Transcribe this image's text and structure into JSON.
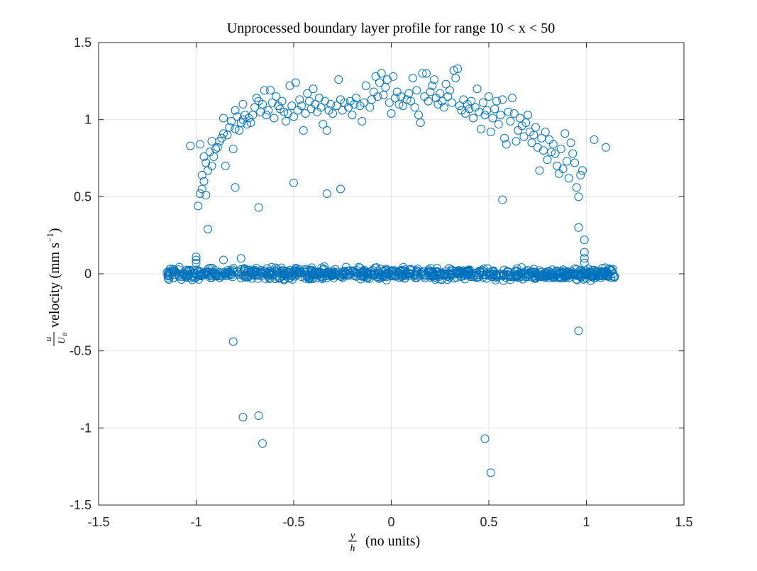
{
  "chart_data": {
    "type": "scatter",
    "title": "Unprocessed boundary layer profile for range 10 < x < 50",
    "xlabel": {
      "frac_num": "y",
      "frac_den": "h",
      "rest": "(no units)"
    },
    "ylabel": {
      "frac_num": "u",
      "frac_den": "U",
      "frac_den_sub": "B",
      "rest": "velocity (mm s",
      "unit_exp": "−1",
      "close": ")"
    },
    "xlim": [
      -1.5,
      1.5
    ],
    "ylim": [
      -1.5,
      1.5
    ],
    "xticks": [
      -1.5,
      -1,
      -0.5,
      0,
      0.5,
      1,
      1.5
    ],
    "xtick_labels": [
      "-1.5",
      "-1",
      "-0.5",
      "0",
      "0.5",
      "1",
      "1.5"
    ],
    "yticks": [
      -1.5,
      -1,
      -0.5,
      0,
      0.5,
      1,
      1.5
    ],
    "ytick_labels": [
      "-1.5",
      "-1",
      "-0.5",
      "0",
      "0.5",
      "1",
      "1.5"
    ],
    "grid": true,
    "marker": "open-circle",
    "marker_color": "#0072BD",
    "grid_color": "#e3e3e3",
    "near_zero_band": {
      "x_range": [
        -1.15,
        1.15
      ],
      "y_center": 0.0,
      "y_spread": 0.03,
      "count": 900
    },
    "points": [
      [
        -1.03,
        0.83
      ],
      [
        -0.98,
        0.84
      ],
      [
        -0.99,
        0.44
      ],
      [
        -0.98,
        0.52
      ],
      [
        -0.97,
        0.55
      ],
      [
        -0.96,
        0.6
      ],
      [
        -0.97,
        0.64
      ],
      [
        -0.95,
        0.51
      ],
      [
        -0.94,
        0.67
      ],
      [
        -0.95,
        0.72
      ],
      [
        -0.96,
        0.76
      ],
      [
        -0.93,
        0.79
      ],
      [
        -0.92,
        0.7
      ],
      [
        -0.91,
        0.76
      ],
      [
        -0.92,
        0.86
      ],
      [
        -0.9,
        0.81
      ],
      [
        -0.89,
        0.82
      ],
      [
        -0.88,
        0.86
      ],
      [
        -0.87,
        0.88
      ],
      [
        -0.86,
        0.91
      ],
      [
        -0.86,
        1.01
      ],
      [
        -0.85,
        0.7
      ],
      [
        -0.84,
        0.9
      ],
      [
        -0.83,
        0.95
      ],
      [
        -0.82,
        0.99
      ],
      [
        -0.81,
        0.81
      ],
      [
        -0.8,
        0.94
      ],
      [
        -0.8,
        1.06
      ],
      [
        -0.79,
        1.02
      ],
      [
        -0.78,
        0.93
      ],
      [
        -0.77,
        0.98
      ],
      [
        -0.76,
        1.0
      ],
      [
        -0.76,
        1.1
      ],
      [
        -0.75,
        1.03
      ],
      [
        -0.74,
        0.97
      ],
      [
        -0.73,
        1.01
      ],
      [
        -0.72,
        0.98
      ],
      [
        -0.71,
        1.03
      ],
      [
        -0.7,
        1.08
      ],
      [
        -0.69,
        1.14
      ],
      [
        -0.68,
        1.12
      ],
      [
        -0.67,
        1.05
      ],
      [
        -0.66,
        1.1
      ],
      [
        -0.65,
        1.19
      ],
      [
        -0.64,
        1.03
      ],
      [
        -0.63,
        1.06
      ],
      [
        -0.62,
        1.19
      ],
      [
        -0.61,
        1.11
      ],
      [
        -0.6,
        1.01
      ],
      [
        -0.59,
        1.15
      ],
      [
        -0.58,
        1.09
      ],
      [
        -0.57,
        1.07
      ],
      [
        -0.56,
        1.12
      ],
      [
        -0.55,
        1.05
      ],
      [
        -0.54,
        0.99
      ],
      [
        -0.53,
        1.04
      ],
      [
        -0.52,
        1.22
      ],
      [
        -0.51,
        1.09
      ],
      [
        -0.5,
        1.02
      ],
      [
        -0.49,
        1.24
      ],
      [
        -0.48,
        1.06
      ],
      [
        -0.47,
        1.13
      ],
      [
        -0.46,
        1.09
      ],
      [
        -0.45,
        0.93
      ],
      [
        -0.44,
        1.04
      ],
      [
        -0.43,
        1.17
      ],
      [
        -0.42,
        1.12
      ],
      [
        -0.41,
        1.07
      ],
      [
        -0.4,
        1.2
      ],
      [
        -0.39,
        1.1
      ],
      [
        -0.38,
        1.05
      ],
      [
        -0.37,
        1.14
      ],
      [
        -0.36,
        1.08
      ],
      [
        -0.35,
        0.97
      ],
      [
        -0.34,
        1.12
      ],
      [
        -0.33,
        0.93
      ],
      [
        -0.32,
        1.06
      ],
      [
        -0.31,
        1.1
      ],
      [
        -0.3,
        1.04
      ],
      [
        -0.28,
        1.09
      ],
      [
        -0.27,
        1.26
      ],
      [
        -0.26,
        1.13
      ],
      [
        -0.25,
        1.06
      ],
      [
        -0.24,
        1.11
      ],
      [
        -0.22,
        1.08
      ],
      [
        -0.21,
        1.12
      ],
      [
        -0.2,
        1.03
      ],
      [
        -0.19,
        1.1
      ],
      [
        -0.18,
        1.14
      ],
      [
        -0.16,
        1.09
      ],
      [
        -0.15,
        0.99
      ],
      [
        -0.14,
        1.11
      ],
      [
        -0.13,
        1.22
      ],
      [
        -0.11,
        1.08
      ],
      [
        -0.1,
        1.13
      ],
      [
        -0.09,
        1.18
      ],
      [
        -0.08,
        1.28
      ],
      [
        -0.07,
        1.15
      ],
      [
        -0.06,
        1.24
      ],
      [
        -0.05,
        1.3
      ],
      [
        -0.04,
        1.16
      ],
      [
        -0.03,
        1.21
      ],
      [
        -0.02,
        1.26
      ],
      [
        -0.01,
        1.11
      ],
      [
        0.0,
        1.04
      ],
      [
        0.01,
        1.28
      ],
      [
        0.02,
        1.14
      ],
      [
        0.03,
        1.18
      ],
      [
        0.04,
        1.1
      ],
      [
        0.05,
        1.15
      ],
      [
        0.06,
        1.09
      ],
      [
        0.08,
        1.13
      ],
      [
        0.09,
        1.17
      ],
      [
        0.1,
        1.12
      ],
      [
        0.11,
        1.27
      ],
      [
        0.12,
        1.08
      ],
      [
        0.13,
        1.19
      ],
      [
        0.14,
        1.03
      ],
      [
        0.15,
        0.98
      ],
      [
        0.16,
        1.3
      ],
      [
        0.17,
        1.15
      ],
      [
        0.18,
        1.3
      ],
      [
        0.19,
        1.12
      ],
      [
        0.2,
        1.18
      ],
      [
        0.21,
        1.22
      ],
      [
        0.22,
        1.26
      ],
      [
        0.23,
        1.14
      ],
      [
        0.24,
        1.1
      ],
      [
        0.25,
        1.17
      ],
      [
        0.26,
        1.12
      ],
      [
        0.27,
        1.08
      ],
      [
        0.28,
        1.23
      ],
      [
        0.29,
        1.15
      ],
      [
        0.3,
        1.19
      ],
      [
        0.31,
        1.11
      ],
      [
        0.32,
        1.32
      ],
      [
        0.33,
        1.27
      ],
      [
        0.34,
        1.33
      ],
      [
        0.35,
        1.09
      ],
      [
        0.36,
        1.06
      ],
      [
        0.37,
        1.13
      ],
      [
        0.38,
        1.04
      ],
      [
        0.39,
        1.1
      ],
      [
        0.4,
        1.07
      ],
      [
        0.41,
        1.12
      ],
      [
        0.42,
        1.01
      ],
      [
        0.43,
        1.08
      ],
      [
        0.44,
        1.2
      ],
      [
        0.45,
        1.05
      ],
      [
        0.46,
        0.94
      ],
      [
        0.47,
        1.11
      ],
      [
        0.48,
        1.03
      ],
      [
        0.49,
        1.06
      ],
      [
        0.5,
        1.15
      ],
      [
        0.51,
        0.92
      ],
      [
        0.52,
        1.01
      ],
      [
        0.53,
        1.07
      ],
      [
        0.54,
        1.12
      ],
      [
        0.55,
        0.97
      ],
      [
        0.56,
        1.03
      ],
      [
        0.57,
        1.13
      ],
      [
        0.58,
        0.88
      ],
      [
        0.59,
        0.84
      ],
      [
        0.6,
        1.05
      ],
      [
        0.61,
        0.99
      ],
      [
        0.62,
        1.14
      ],
      [
        0.63,
        1.04
      ],
      [
        0.64,
        0.86
      ],
      [
        0.65,
        0.93
      ],
      [
        0.66,
        1.01
      ],
      [
        0.67,
        0.96
      ],
      [
        0.68,
        0.89
      ],
      [
        0.69,
        0.98
      ],
      [
        0.7,
        1.03
      ],
      [
        0.71,
        0.92
      ],
      [
        0.72,
        0.85
      ],
      [
        0.73,
        0.9
      ],
      [
        0.74,
        0.95
      ],
      [
        0.75,
        0.82
      ],
      [
        0.76,
        0.67
      ],
      [
        0.77,
        0.88
      ],
      [
        0.78,
        0.8
      ],
      [
        0.79,
        0.92
      ],
      [
        0.8,
        0.74
      ],
      [
        0.81,
        0.87
      ],
      [
        0.82,
        0.79
      ],
      [
        0.83,
        0.84
      ],
      [
        0.84,
        0.78
      ],
      [
        0.85,
        0.7
      ],
      [
        0.86,
        0.65
      ],
      [
        0.87,
        0.81
      ],
      [
        0.88,
        0.68
      ],
      [
        0.89,
        0.91
      ],
      [
        0.9,
        0.73
      ],
      [
        0.91,
        0.62
      ],
      [
        0.92,
        0.85
      ],
      [
        0.93,
        0.78
      ],
      [
        0.94,
        0.72
      ],
      [
        0.95,
        0.56
      ],
      [
        0.96,
        0.5
      ],
      [
        0.97,
        0.64
      ],
      [
        0.98,
        0.67
      ],
      [
        1.04,
        0.87
      ],
      [
        1.1,
        0.82
      ],
      [
        -0.94,
        0.29
      ],
      [
        -0.8,
        0.56
      ],
      [
        -0.68,
        0.43
      ],
      [
        -0.5,
        0.59
      ],
      [
        -0.33,
        0.52
      ],
      [
        -0.26,
        0.55
      ],
      [
        0.57,
        0.48
      ],
      [
        0.96,
        0.3
      ],
      [
        0.99,
        0.22
      ],
      [
        0.99,
        0.14
      ],
      [
        0.99,
        0.1
      ],
      [
        0.99,
        0.07
      ],
      [
        -1.0,
        0.11
      ],
      [
        -1.0,
        0.09
      ],
      [
        -1.0,
        0.07
      ],
      [
        -0.77,
        0.1
      ],
      [
        -0.86,
        0.09
      ],
      [
        -0.81,
        -0.44
      ],
      [
        -0.76,
        -0.93
      ],
      [
        -0.68,
        -0.92
      ],
      [
        -0.66,
        -1.1
      ],
      [
        0.48,
        -1.07
      ],
      [
        0.51,
        -1.29
      ],
      [
        0.96,
        -0.37
      ]
    ]
  }
}
